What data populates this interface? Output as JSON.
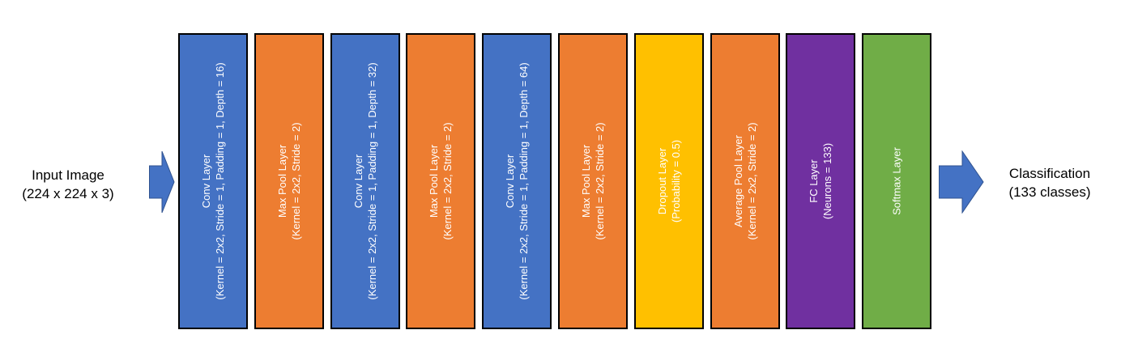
{
  "input": {
    "line1": "Input Image",
    "line2": "(224 x 224 x 3)"
  },
  "output": {
    "line1": "Classification",
    "line2": "(133 classes)"
  },
  "colors": {
    "conv": "#4472C4",
    "pool": "#ED7D31",
    "dropout": "#FFC000",
    "fc": "#7030A0",
    "softmax": "#70AD47",
    "arrow": "#4472C4"
  },
  "layers": [
    {
      "kind": "conv",
      "title": "Conv Layer",
      "params": "(Kernel = 2x2, Stride = 1, Padding = 1, Depth = 16)"
    },
    {
      "kind": "pool",
      "title": "Max Pool Layer",
      "params": "(Kernel = 2x2, Stride = 2)"
    },
    {
      "kind": "conv",
      "title": "Conv Layer",
      "params": "(Kernel = 2x2, Stride = 1, Padding = 1, Depth = 32)"
    },
    {
      "kind": "pool",
      "title": "Max Pool Layer",
      "params": "(Kernel = 2x2, Stride = 2)"
    },
    {
      "kind": "conv",
      "title": "Conv Layer",
      "params": "(Kernel = 2x2, Stride = 1, Padding = 1, Depth = 64)"
    },
    {
      "kind": "pool",
      "title": "Max Pool Layer",
      "params": "(Kernel = 2x2, Stride = 2)"
    },
    {
      "kind": "dropout",
      "title": "Dropout Layer",
      "params": "(Probability = 0.5)"
    },
    {
      "kind": "pool",
      "title": "Average Pool Layer",
      "params": "(Kernel = 2x2, Stride = 2)"
    },
    {
      "kind": "fc",
      "title": "FC Layer",
      "params": "(Neurons = 133)"
    },
    {
      "kind": "softmax",
      "title": "Softmax Layer",
      "params": ""
    }
  ]
}
